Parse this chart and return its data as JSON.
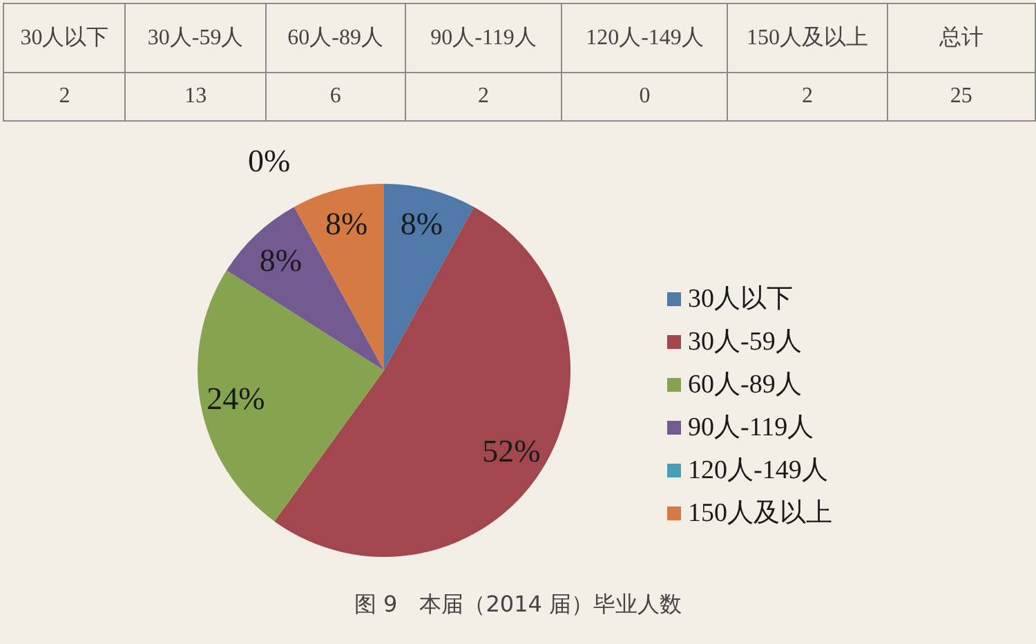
{
  "chart_data": [
    {
      "type": "other",
      "categories": [
        "30人以下",
        "30人-59人",
        "60人-89人",
        "90人-119人",
        "120人-149人",
        "150人及以上",
        "总计"
      ],
      "values": [
        2,
        13,
        6,
        2,
        0,
        2,
        25
      ],
      "data_labels": true
    },
    {
      "type": "pie",
      "title": "图 9　本届（2014 届）毕业人数",
      "categories": [
        "30人以下",
        "30人-59人",
        "60人-89人",
        "90人-119人",
        "120人-149人",
        "150人及以上"
      ],
      "values": [
        8,
        52,
        24,
        8,
        0,
        8
      ],
      "value_labels": [
        "8%",
        "52%",
        "24%",
        "8%",
        "0%",
        "8%"
      ],
      "colors": [
        "#4f79a8",
        "#a3474f",
        "#86a34f",
        "#735b91",
        "#45a0b5",
        "#d47a42"
      ],
      "legend": "right"
    }
  ]
}
